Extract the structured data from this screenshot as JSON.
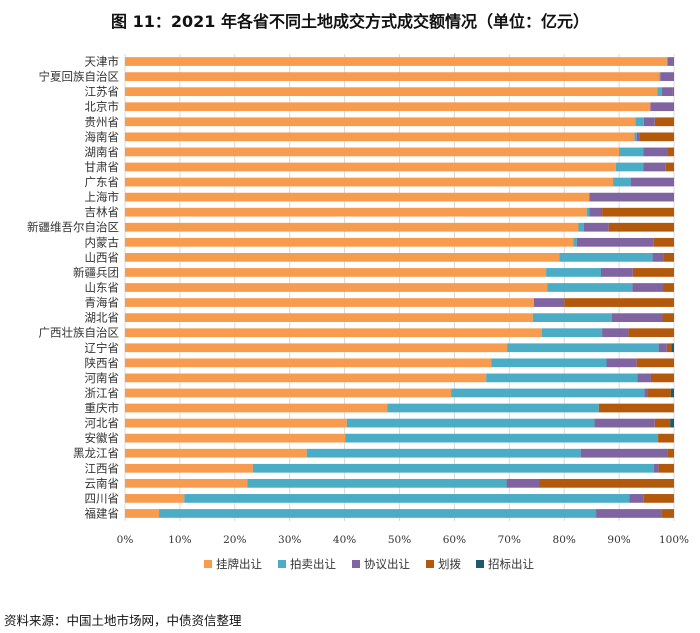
{
  "title": "图 11：2021 年各省不同土地成交方式成交额情况（单位：亿元）",
  "source": "资料来源：中国土地市场网，中债资信整理",
  "colors": {
    "挂牌出让": "#F79B4F",
    "拍卖出让": "#4BACC6",
    "协议出让": "#8064A2",
    "划拨": "#B3590C",
    "招标出让": "#1F5A6C"
  },
  "chart_data": {
    "type": "bar",
    "orientation": "horizontal",
    "stacked": "percent",
    "title": "图 11：2021 年各省不同土地成交方式成交额情况（单位：亿元）",
    "xlim": [
      0,
      100
    ],
    "x_ticks": [
      "0%",
      "10%",
      "20%",
      "30%",
      "40%",
      "50%",
      "60%",
      "70%",
      "80%",
      "90%",
      "100%"
    ],
    "grid": "vertical",
    "legend_position": "bottom",
    "categories": [
      "天津市",
      "宁夏回族自治区",
      "江苏省",
      "北京市",
      "贵州省",
      "海南省",
      "湖南省",
      "甘肃省",
      "广东省",
      "上海市",
      "吉林省",
      "新疆维吾尔自治区",
      "内蒙古",
      "山西省",
      "新疆兵团",
      "山东省",
      "青海省",
      "湖北省",
      "广西壮族自治区",
      "辽宁省",
      "陕西省",
      "河南省",
      "浙江省",
      "重庆市",
      "河北省",
      "安徽省",
      "黑龙江省",
      "江西省",
      "云南省",
      "四川省",
      "福建省"
    ],
    "series": [
      {
        "name": "挂牌出让",
        "values": [
          98.7,
          97.3,
          97.0,
          95.7,
          93.0,
          92.8,
          90.0,
          89.4,
          88.9,
          84.6,
          84.1,
          82.6,
          81.7,
          79.1,
          76.7,
          76.9,
          74.5,
          74.3,
          75.9,
          69.6,
          66.7,
          65.8,
          59.4,
          47.8,
          40.4,
          40.1,
          33.1,
          23.3,
          22.3,
          10.8,
          6.2
        ]
      },
      {
        "name": "拍卖出让",
        "values": [
          0.2,
          0.2,
          0.8,
          0.0,
          1.5,
          0.4,
          4.4,
          5.0,
          3.2,
          0.0,
          0.5,
          1.0,
          0.6,
          17.0,
          10.0,
          15.5,
          0.0,
          14.4,
          11.0,
          27.6,
          21.0,
          27.5,
          35.2,
          38.5,
          45.1,
          57.0,
          49.9,
          73.0,
          47.2,
          81.1,
          79.6
        ]
      },
      {
        "name": "协议出让",
        "values": [
          1.1,
          2.5,
          2.0,
          4.3,
          2.0,
          0.5,
          4.5,
          4.0,
          7.9,
          15.4,
          2.3,
          4.5,
          14.0,
          2.0,
          5.8,
          5.6,
          5.5,
          9.2,
          4.8,
          1.5,
          5.5,
          2.5,
          0.5,
          0.0,
          11.0,
          0.0,
          15.9,
          0.9,
          6.0,
          2.6,
          12.0
        ]
      },
      {
        "name": "划拨",
        "values": [
          0.0,
          0.0,
          0.2,
          0.0,
          3.5,
          6.3,
          1.1,
          1.6,
          0.0,
          0.0,
          13.1,
          11.9,
          3.7,
          1.9,
          7.5,
          2.0,
          20.0,
          2.1,
          8.3,
          0.8,
          6.8,
          4.2,
          4.3,
          13.7,
          2.8,
          2.9,
          1.1,
          2.8,
          24.5,
          5.5,
          2.2
        ]
      },
      {
        "name": "招标出让",
        "values": [
          0.0,
          0.0,
          0.0,
          0.0,
          0.0,
          0.0,
          0.0,
          0.0,
          0.0,
          0.0,
          0.0,
          0.0,
          0.0,
          0.0,
          0.0,
          0.0,
          0.0,
          0.0,
          0.0,
          0.5,
          0.0,
          0.0,
          0.6,
          0.0,
          0.7,
          0.0,
          0.0,
          0.0,
          0.0,
          0.0,
          0.0
        ]
      }
    ]
  }
}
